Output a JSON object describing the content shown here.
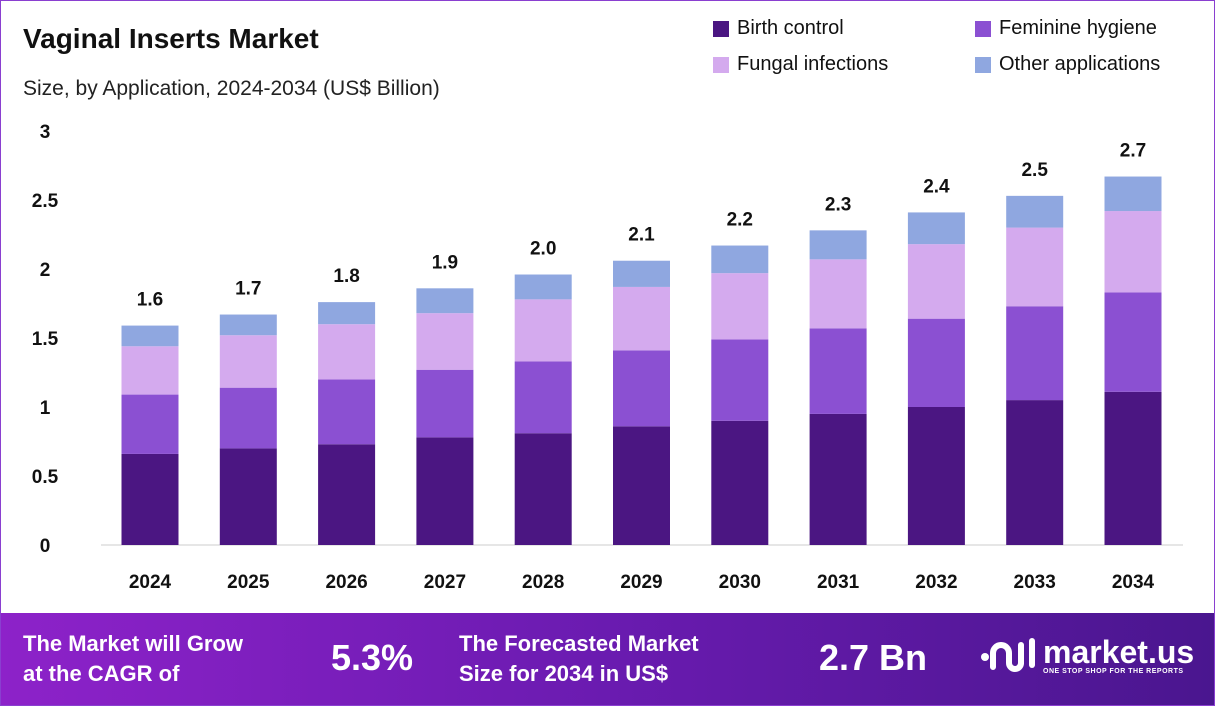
{
  "chart_data": {
    "type": "bar",
    "stacked": true,
    "title": "Vaginal Inserts Market",
    "subtitle": "Size, by Application, 2024-2034 (US$ Billion)",
    "categories": [
      "2024",
      "2025",
      "2026",
      "2027",
      "2028",
      "2029",
      "2030",
      "2031",
      "2032",
      "2033",
      "2034"
    ],
    "series": [
      {
        "name": "Birth control",
        "color": "#4b1682",
        "values": [
          0.66,
          0.7,
          0.73,
          0.78,
          0.81,
          0.86,
          0.9,
          0.95,
          1.0,
          1.05,
          1.11
        ]
      },
      {
        "name": "Feminine hygiene",
        "color": "#8b50d2",
        "values": [
          0.43,
          0.44,
          0.47,
          0.49,
          0.52,
          0.55,
          0.59,
          0.62,
          0.64,
          0.68,
          0.72
        ]
      },
      {
        "name": "Fungal infections",
        "color": "#d4aaee",
        "values": [
          0.35,
          0.38,
          0.4,
          0.41,
          0.45,
          0.46,
          0.48,
          0.5,
          0.54,
          0.57,
          0.59
        ]
      },
      {
        "name": "Other applications",
        "color": "#8fa7e0",
        "values": [
          0.15,
          0.15,
          0.16,
          0.18,
          0.18,
          0.19,
          0.2,
          0.21,
          0.23,
          0.23,
          0.25
        ]
      }
    ],
    "totals_labels": [
      "1.6",
      "1.7",
      "1.8",
      "1.9",
      "2.0",
      "2.1",
      "2.2",
      "2.3",
      "2.4",
      "2.5",
      "2.7"
    ],
    "ylim": [
      0,
      3
    ],
    "yticks": [
      "0",
      "0.5",
      "1",
      "1.5",
      "2",
      "2.5",
      "3"
    ],
    "grid": false,
    "legend_position": "top-right"
  },
  "footer": {
    "cagr_text_1": "The Market will Grow",
    "cagr_text_2": "at the CAGR of",
    "cagr_value": "5.3%",
    "forecast_text_1": "The Forecasted Market",
    "forecast_text_2": "Size for 2034 in US$",
    "forecast_value": "2.7 Bn",
    "logo_text": "market.us",
    "logo_tagline": "ONE STOP SHOP FOR THE REPORTS"
  }
}
